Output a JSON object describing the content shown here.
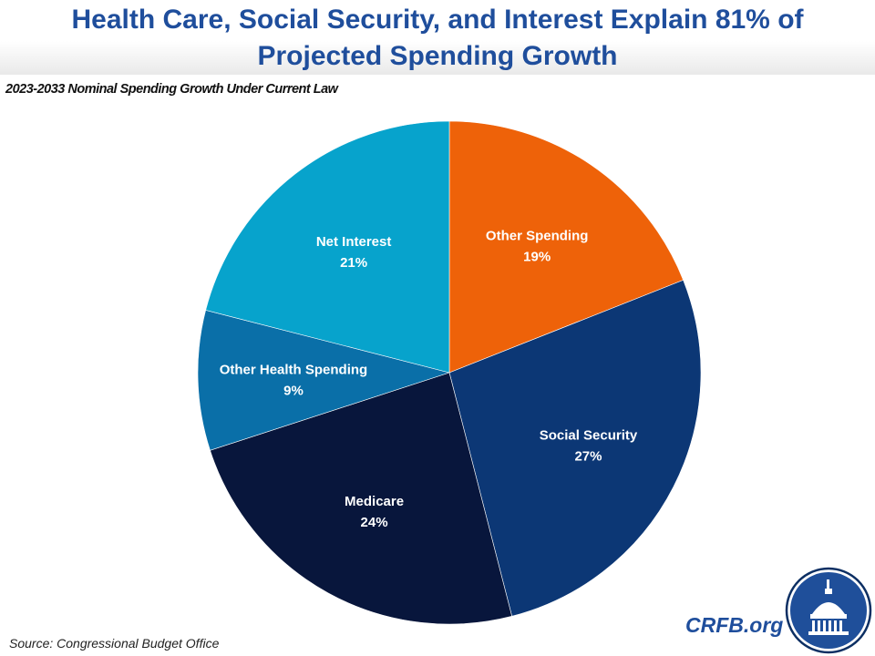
{
  "header": {
    "title_line1": "Health Care, Social Security, and Interest Explain 81% of",
    "title_line2": "Projected Spending Growth"
  },
  "footer": {
    "source": "Source: Congressional Budget Office",
    "brand": "CRFB.org",
    "logo_icon": "capitol-dome-icon"
  },
  "chart_data": {
    "type": "pie",
    "title": "Health Care, Social Security, and Interest Explain 81% of Projected Spending Growth",
    "subtitle": "2023-2033 Nominal Spending Growth Under Current Law",
    "start": "top",
    "direction": "clockwise",
    "legend": "none (data labels inside slices)",
    "slices": [
      {
        "label": "Other Spending",
        "value": 19,
        "display": "19%",
        "color": "#ee6209"
      },
      {
        "label": "Social Security",
        "value": 27,
        "display": "27%",
        "color": "#0c3775"
      },
      {
        "label": "Medicare",
        "value": 24,
        "display": "24%",
        "color": "#08163c"
      },
      {
        "label": "Other Health Spending",
        "value": 9,
        "display": "9%",
        "color": "#0a6fa8"
      },
      {
        "label": "Net Interest",
        "value": 21,
        "display": "21%",
        "color": "#07a3cc"
      }
    ]
  }
}
